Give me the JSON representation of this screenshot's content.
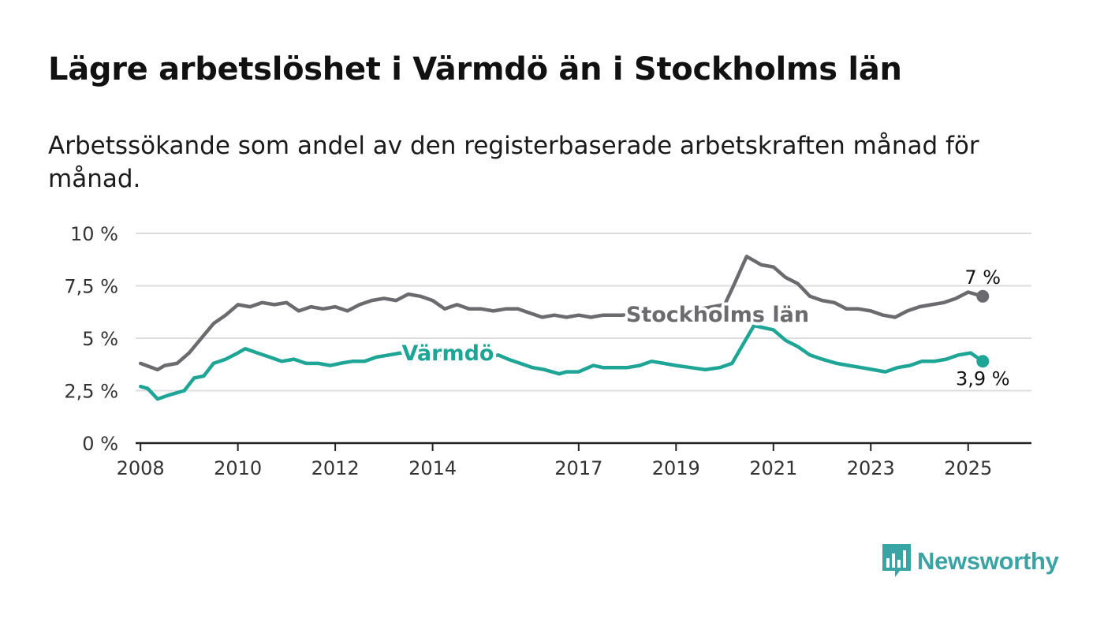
{
  "title": "Lägre arbetslöshet i Värmdö än i Stockholms län",
  "subtitle": "Arbetssökande som andel av den registerbaserade arbetskraften månad för månad.",
  "brand": {
    "name": "Newsworthy",
    "color": "#3aa3a3",
    "icon": "newsworthy-logo-icon"
  },
  "chart_data": {
    "type": "line",
    "ylim": [
      0,
      10
    ],
    "xlim": [
      2007.9,
      2026.3
    ],
    "y_ticks": [
      {
        "value": 0,
        "label": "0 %"
      },
      {
        "value": 2.5,
        "label": "2,5 %"
      },
      {
        "value": 5,
        "label": "5 %"
      },
      {
        "value": 7.5,
        "label": "7,5 %"
      },
      {
        "value": 10,
        "label": "10 %"
      }
    ],
    "x_ticks": [
      {
        "value": 2008,
        "label": "2008"
      },
      {
        "value": 2010,
        "label": "2010"
      },
      {
        "value": 2012,
        "label": "2012"
      },
      {
        "value": 2014,
        "label": "2014"
      },
      {
        "value": 2017,
        "label": "2017"
      },
      {
        "value": 2019,
        "label": "2019"
      },
      {
        "value": 2021,
        "label": "2021"
      },
      {
        "value": 2023,
        "label": "2023"
      },
      {
        "value": 2025,
        "label": "2025"
      }
    ],
    "grid": true,
    "legend": "inline labels",
    "series": [
      {
        "name": "Stockholms län",
        "color": "#6b6a6e",
        "end_label": "7 %",
        "x": [
          2008.0,
          2008.35,
          2008.5,
          2008.75,
          2009.0,
          2009.25,
          2009.5,
          2009.75,
          2010.0,
          2010.25,
          2010.5,
          2010.75,
          2011.0,
          2011.25,
          2011.5,
          2011.75,
          2012.0,
          2012.25,
          2012.5,
          2012.75,
          2013.0,
          2013.25,
          2013.5,
          2013.75,
          2014.0,
          2014.25,
          2014.5,
          2014.75,
          2015.0,
          2015.25,
          2015.5,
          2015.75,
          2016.0,
          2016.25,
          2016.5,
          2016.75,
          2017.0,
          2017.25,
          2017.5,
          2017.9,
          2018.25,
          2018.5,
          2018.75,
          2019.0,
          2019.25,
          2019.5,
          2019.75,
          2020.0,
          2020.2,
          2020.45,
          2020.6,
          2020.75,
          2021.0,
          2021.25,
          2021.5,
          2021.75,
          2022.0,
          2022.25,
          2022.5,
          2022.75,
          2023.0,
          2023.25,
          2023.5,
          2023.75,
          2024.0,
          2024.25,
          2024.5,
          2024.75,
          2025.0,
          2025.3
        ],
        "values": [
          3.8,
          3.5,
          3.7,
          3.8,
          4.3,
          5.0,
          5.7,
          6.1,
          6.6,
          6.5,
          6.7,
          6.6,
          6.7,
          6.3,
          6.5,
          6.4,
          6.5,
          6.3,
          6.6,
          6.8,
          6.9,
          6.8,
          7.1,
          7.0,
          6.8,
          6.4,
          6.6,
          6.4,
          6.4,
          6.3,
          6.4,
          6.4,
          6.2,
          6.0,
          6.1,
          6.0,
          6.1,
          6.0,
          6.1,
          6.1,
          6.2,
          6.2,
          6.2,
          6.2,
          6.3,
          6.4,
          6.5,
          6.6,
          7.6,
          8.9,
          8.7,
          8.5,
          8.4,
          7.9,
          7.6,
          7.0,
          6.8,
          6.7,
          6.4,
          6.4,
          6.3,
          6.1,
          6.0,
          6.3,
          6.5,
          6.6,
          6.7,
          6.9,
          7.2,
          7.0
        ]
      },
      {
        "name": "Värmdö",
        "color": "#1fa596",
        "end_label": "3,9 %",
        "x": [
          2008.0,
          2008.15,
          2008.35,
          2008.6,
          2008.9,
          2009.1,
          2009.3,
          2009.5,
          2009.75,
          2010.0,
          2010.15,
          2010.4,
          2010.65,
          2010.9,
          2011.15,
          2011.4,
          2011.65,
          2011.9,
          2012.1,
          2012.35,
          2012.6,
          2012.85,
          2013.1,
          2013.35,
          2013.6,
          2013.85,
          2014.1,
          2014.35,
          2014.6,
          2014.85,
          2015.1,
          2015.35,
          2015.55,
          2015.8,
          2016.05,
          2016.3,
          2016.6,
          2016.75,
          2017.0,
          2017.3,
          2017.5,
          2017.75,
          2018.0,
          2018.25,
          2018.5,
          2018.75,
          2019.0,
          2019.3,
          2019.6,
          2019.9,
          2020.15,
          2020.4,
          2020.6,
          2020.8,
          2021.0,
          2021.25,
          2021.5,
          2021.75,
          2022.0,
          2022.3,
          2022.55,
          2022.8,
          2023.05,
          2023.3,
          2023.55,
          2023.8,
          2024.05,
          2024.3,
          2024.55,
          2024.8,
          2025.05,
          2025.3
        ],
        "values": [
          2.7,
          2.6,
          2.1,
          2.3,
          2.5,
          3.1,
          3.2,
          3.8,
          4.0,
          4.3,
          4.5,
          4.3,
          4.1,
          3.9,
          4.0,
          3.8,
          3.8,
          3.7,
          3.8,
          3.9,
          3.9,
          4.1,
          4.2,
          4.3,
          4.3,
          4.3,
          4.2,
          4.2,
          4.2,
          4.1,
          4.1,
          4.2,
          4.0,
          3.8,
          3.6,
          3.5,
          3.3,
          3.4,
          3.4,
          3.7,
          3.6,
          3.6,
          3.6,
          3.7,
          3.9,
          3.8,
          3.7,
          3.6,
          3.5,
          3.6,
          3.8,
          4.8,
          5.6,
          5.5,
          5.4,
          4.9,
          4.6,
          4.2,
          4.0,
          3.8,
          3.7,
          3.6,
          3.5,
          3.4,
          3.6,
          3.7,
          3.9,
          3.9,
          4.0,
          4.2,
          4.3,
          3.9
        ]
      }
    ]
  }
}
